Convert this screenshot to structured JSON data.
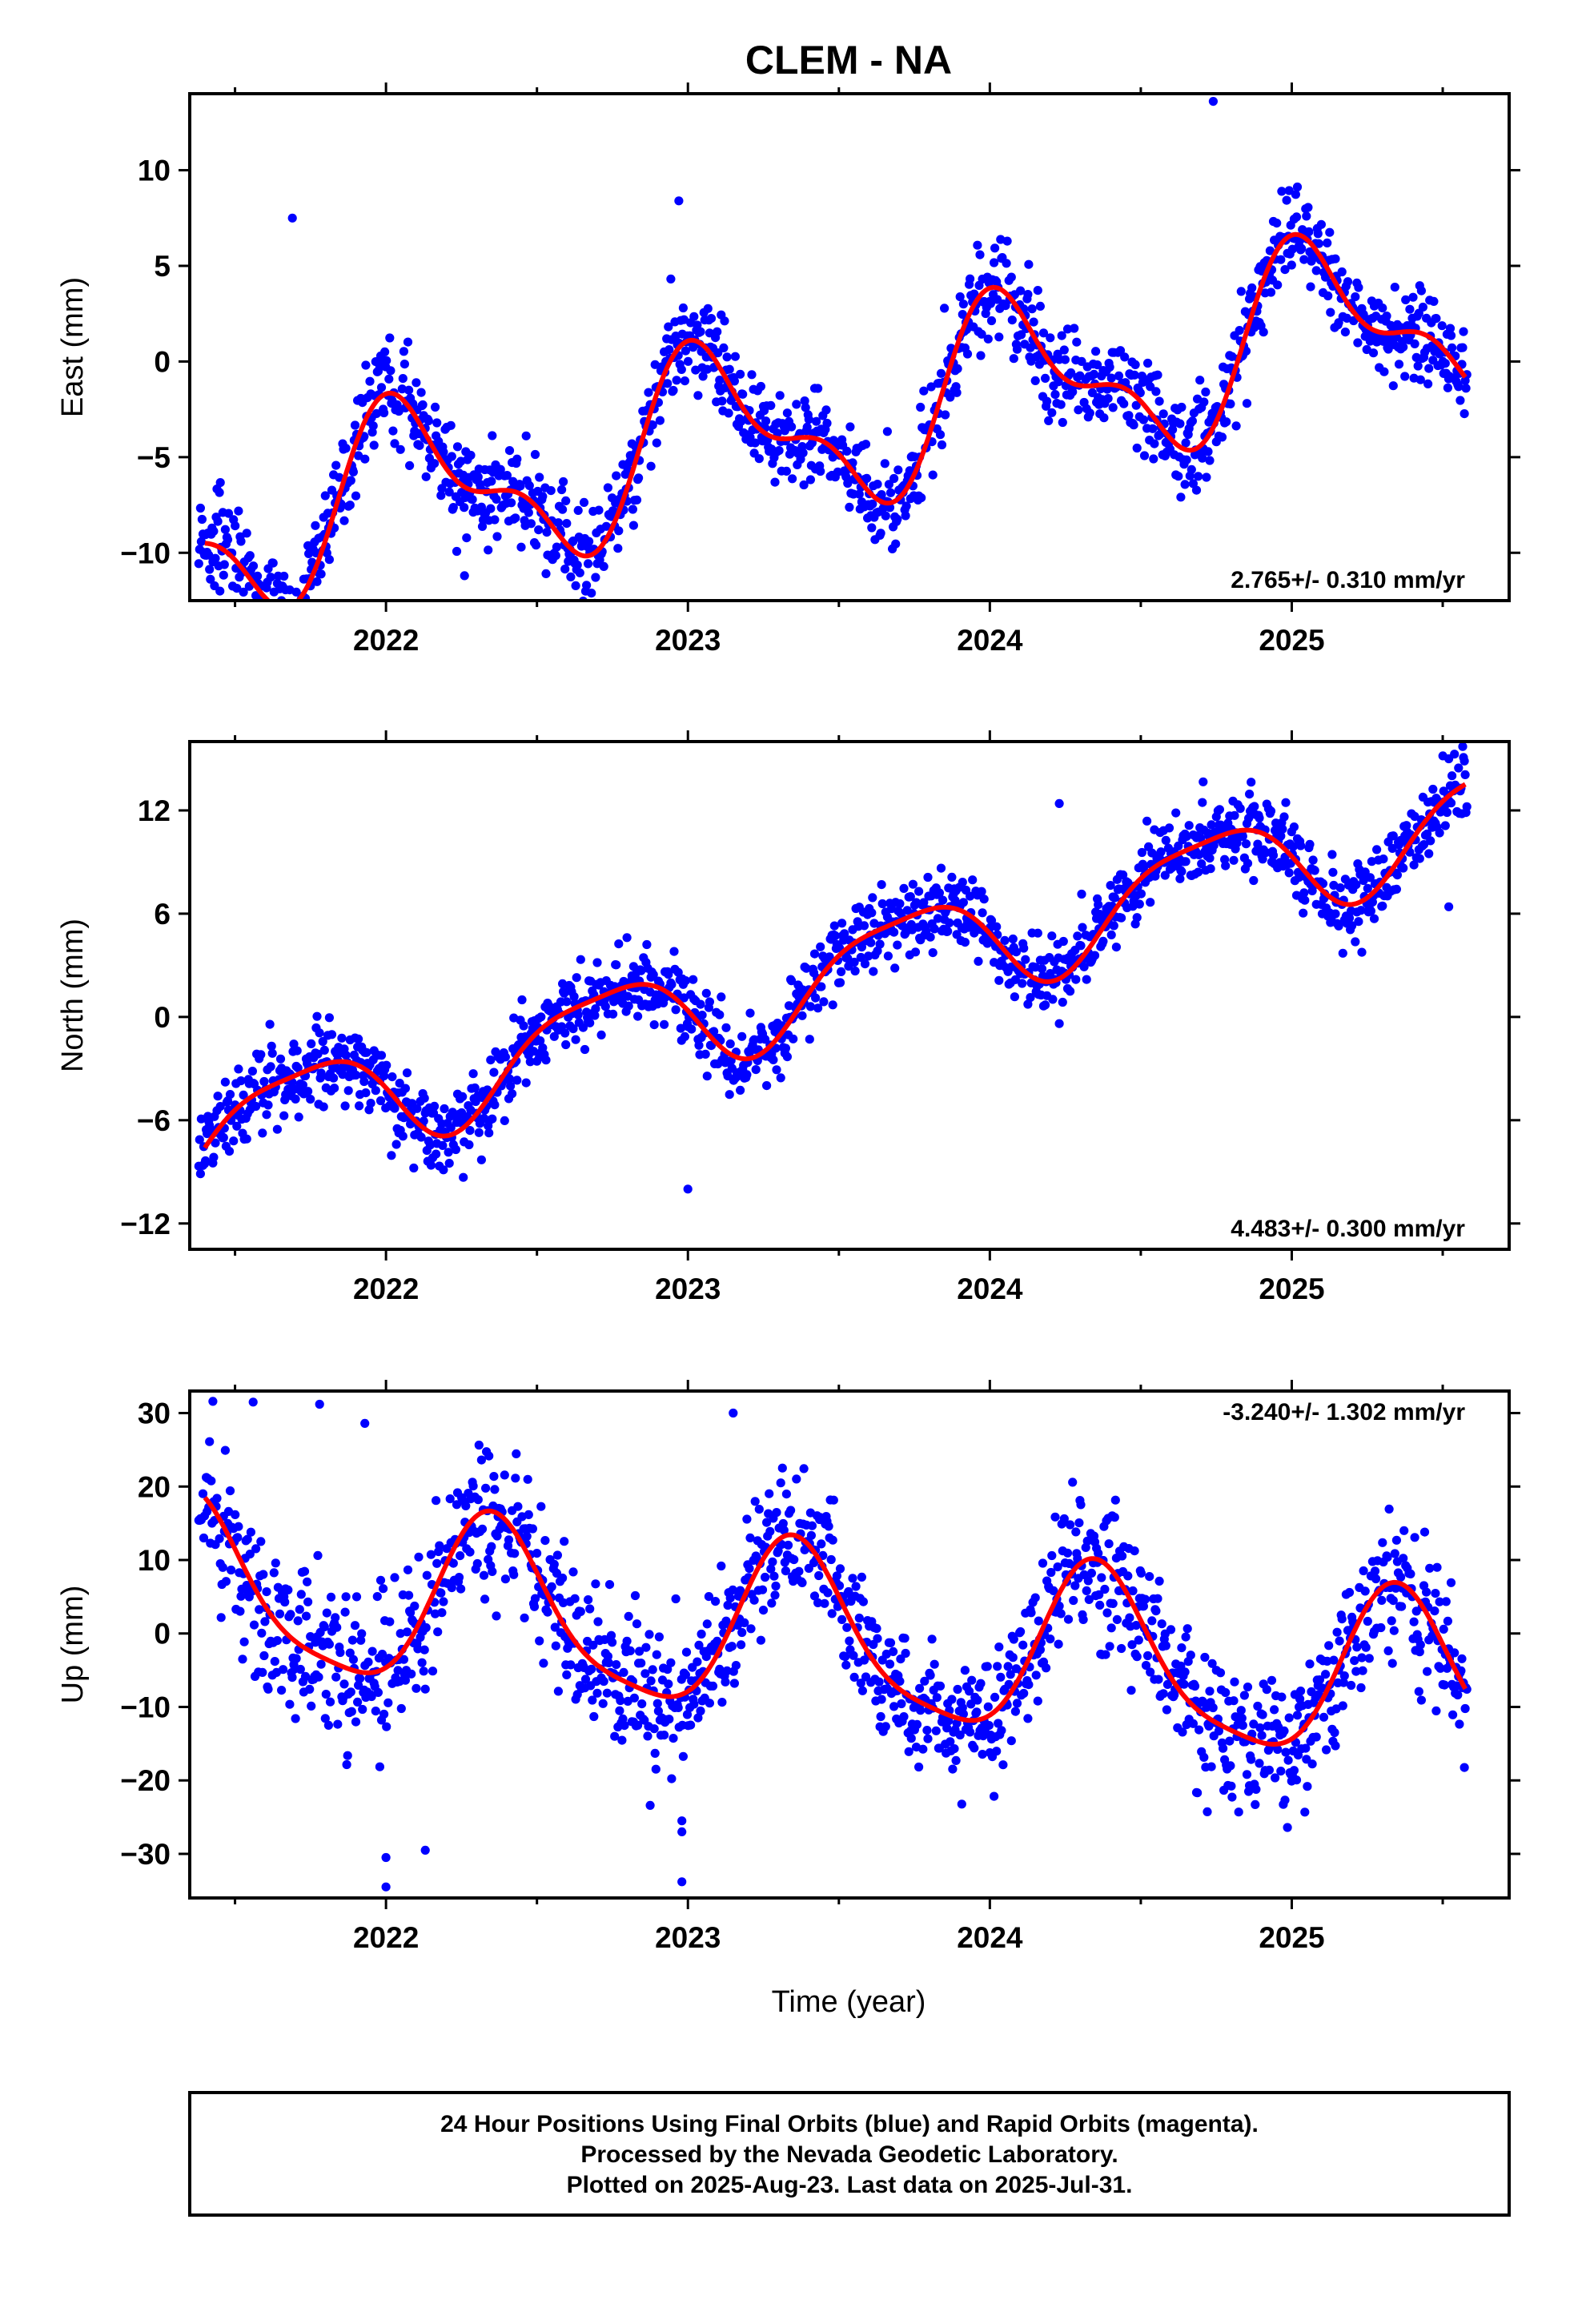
{
  "chart_data": {
    "title": "CLEM - NA",
    "xlabel": "Time (year)",
    "type": "scatter",
    "colors": {
      "data_points": "#0000ff",
      "model_fit": "#ff0000",
      "axes": "#000000"
    },
    "panels": [
      {
        "type": "scatter",
        "ylabel": "East (mm)",
        "xlim": [
          2021.35,
          2025.72
        ],
        "ylim": [
          -12.5,
          14
        ],
        "yticks": [
          10,
          5,
          0,
          -5,
          -10
        ],
        "ytick_labels": [
          "10",
          "5",
          "0",
          "−5",
          "−10"
        ],
        "xticks": [
          2022,
          2023,
          2024,
          2025
        ],
        "xtick_labels": [
          "2022",
          "2023",
          "2024",
          "2025"
        ],
        "rate_label": "2.765+/- 0.310 mm/yr",
        "rate_position": "bottom-right",
        "fit_model": {
          "name": "trend + annual + semiannual",
          "x0": 2021.4,
          "y0": -8.8,
          "rate": 2.765,
          "terms": [
            {
              "a": -3.6,
              "b": -1.9,
              "period": 1.0
            },
            {
              "a": 1.5,
              "b": 1.2,
              "period": 0.5
            }
          ]
        },
        "scatter_sd": 1.3,
        "outliers": [
          {
            "x": 2024.74,
            "y": 13.6
          },
          {
            "x": 2021.69,
            "y": 7.5
          },
          {
            "x": 2022.97,
            "y": 8.4
          },
          {
            "x": 2022.26,
            "y": -11.2
          },
          {
            "x": 2021.45,
            "y": -12.0
          }
        ]
      },
      {
        "type": "scatter",
        "ylabel": "North (mm)",
        "xlim": [
          2021.35,
          2025.72
        ],
        "ylim": [
          -13.5,
          16
        ],
        "yticks": [
          12,
          6,
          0,
          -6,
          -12
        ],
        "ytick_labels": [
          "12",
          "6",
          "0",
          "−6",
          "−12"
        ],
        "xticks": [
          2022,
          2023,
          2024,
          2025
        ],
        "xtick_labels": [
          "2022",
          "2023",
          "2024",
          "2025"
        ],
        "rate_label": "4.483+/- 0.300 mm/yr",
        "rate_position": "bottom-right",
        "fit_model": {
          "name": "trend + annual + semiannual",
          "x0": 2021.4,
          "y0": -6.9,
          "rate": 4.483,
          "terms": [
            {
              "a": 2.6,
              "b": -1.3,
              "period": 1.0
            },
            {
              "a": 0.4,
              "b": 0.6,
              "period": 0.5
            }
          ]
        },
        "scatter_sd": 1.1,
        "outliers": [
          {
            "x": 2023.0,
            "y": -10.0
          },
          {
            "x": 2024.23,
            "y": 12.4
          },
          {
            "x": 2025.52,
            "y": 15.0
          },
          {
            "x": 2025.52,
            "y": 6.4
          },
          {
            "x": 2021.66,
            "y": -3.5
          }
        ]
      },
      {
        "type": "scatter",
        "ylabel": "Up (mm)",
        "xlim": [
          2021.35,
          2025.72
        ],
        "ylim": [
          -36,
          33
        ],
        "yticks": [
          30,
          20,
          10,
          0,
          -10,
          -20,
          -30
        ],
        "ytick_labels": [
          "30",
          "20",
          "10",
          "0",
          "−10",
          "−20",
          "−30"
        ],
        "xticks": [
          2022,
          2023,
          2024,
          2025
        ],
        "xtick_labels": [
          "2022",
          "2023",
          "2024",
          "2025"
        ],
        "rate_label": "-3.240+/- 1.302 mm/yr",
        "rate_position": "top-right",
        "fit_model": {
          "name": "trend + annual + semiannual",
          "x0": 2021.4,
          "y0": 6.0,
          "rate": -3.24,
          "terms": [
            {
              "a": -2.8,
              "b": 11.0,
              "period": 1.0
            },
            {
              "a": -2.0,
              "b": 1.5,
              "period": 0.5
            }
          ]
        },
        "scatter_sd": 4.8,
        "outliers": [
          {
            "x": 2022.0,
            "y": -34.5
          },
          {
            "x": 2022.0,
            "y": -30.5
          },
          {
            "x": 2022.13,
            "y": -29.5
          },
          {
            "x": 2022.98,
            "y": -33.8
          },
          {
            "x": 2022.98,
            "y": -27.0
          },
          {
            "x": 2022.98,
            "y": -25.5
          },
          {
            "x": 2023.15,
            "y": 30.0
          },
          {
            "x": 2021.56,
            "y": 31.5
          },
          {
            "x": 2021.78,
            "y": 31.2
          },
          {
            "x": 2021.93,
            "y": 28.6
          }
        ]
      }
    ]
  },
  "footer": {
    "line1": "24 Hour Positions Using Final Orbits (blue) and Rapid Orbits (magenta).",
    "line2": "Processed by the Nevada Geodetic Laboratory.",
    "line3": "Plotted on 2025-Aug-23. Last data on 2025-Jul-31."
  }
}
